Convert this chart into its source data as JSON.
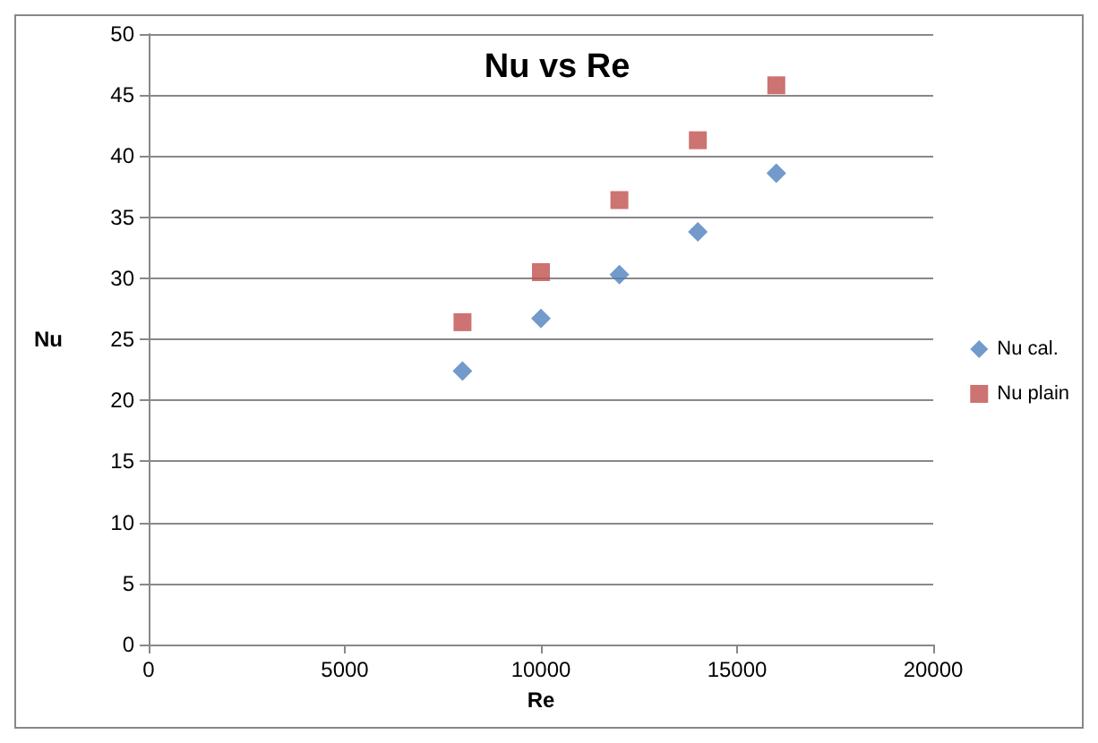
{
  "chart_data": {
    "type": "scatter",
    "title": "Nu vs Re",
    "xlabel": "Re",
    "ylabel": "Nu",
    "x": [
      8000,
      10000,
      12000,
      14000,
      16000
    ],
    "series": [
      {
        "name": "Nu cal.",
        "color": "#4f81bd",
        "marker": "diamond",
        "values": [
          22.4,
          26.7,
          30.3,
          33.8,
          38.6
        ]
      },
      {
        "name": "Nu plain",
        "color": "#c0504d",
        "marker": "square",
        "values": [
          26.4,
          30.5,
          36.4,
          41.3,
          45.8
        ]
      }
    ],
    "xlim": [
      0,
      20000
    ],
    "xticks": [
      0,
      5000,
      10000,
      15000,
      20000
    ],
    "ylim": [
      0,
      50
    ],
    "yticks": [
      0,
      5,
      10,
      15,
      20,
      25,
      30,
      35,
      40,
      45,
      50
    ],
    "grid": "y",
    "legend": "right"
  }
}
